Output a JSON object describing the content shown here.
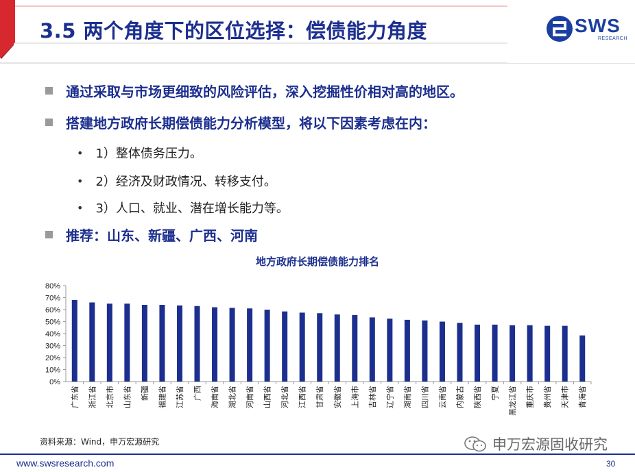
{
  "header": {
    "title": "3.5 两个角度下的区位选择：偿债能力角度",
    "logo_text": "SWS",
    "logo_sub": "RESEARCH",
    "accent": "#d7282f",
    "brand": "#1c2f8f"
  },
  "bullets": [
    {
      "text": "通过采取与市场更细致的风险评估，深入挖掘性价相对高的地区。"
    },
    {
      "text": "搭建地方政府长期偿债能力分析模型，将以下因素考虑在内："
    }
  ],
  "sub_bullets": [
    {
      "marker": "•",
      "text": "1）整体债务压力。"
    },
    {
      "marker": "•",
      "text": "2）经济及财政情况、转移支付。"
    },
    {
      "marker": "•",
      "text": "3）人口、就业、潜在增长能力等。"
    }
  ],
  "recommend": {
    "text": "推荐：山东、新疆、广西、河南"
  },
  "chart_data": {
    "type": "bar",
    "title": "地方政府长期偿债能力排名",
    "categories": [
      "广东省",
      "浙江省",
      "北京市",
      "山东省",
      "新疆",
      "福建省",
      "江苏省",
      "广西",
      "海南省",
      "湖北省",
      "河南省",
      "山西省",
      "河北省",
      "江西省",
      "甘肃省",
      "安徽省",
      "上海市",
      "吉林省",
      "辽宁省",
      "湖南省",
      "四川省",
      "云南省",
      "内蒙古",
      "陕西省",
      "宁夏",
      "黑龙江省",
      "重庆市",
      "贵州省",
      "天津市",
      "青海省"
    ],
    "values": [
      68,
      66,
      65,
      65,
      64,
      64,
      63.5,
      63,
      62,
      61.5,
      61,
      60,
      58.5,
      57.5,
      57,
      56,
      55.5,
      53.5,
      52.5,
      51.5,
      51,
      50,
      49,
      47.5,
      47.5,
      47,
      47,
      46.5,
      46.5,
      38.5
    ],
    "ylim": [
      0,
      80
    ],
    "yticks": [
      "0%",
      "10%",
      "20%",
      "30%",
      "40%",
      "50%",
      "60%",
      "70%",
      "80%"
    ],
    "bar_color": "#1c2f8f",
    "grid": false
  },
  "source": "资料来源：Wind，申万宏源研究",
  "watermark": "申万宏源固收研究",
  "footer": {
    "url": "www.swsresearch.com",
    "page": "30"
  }
}
